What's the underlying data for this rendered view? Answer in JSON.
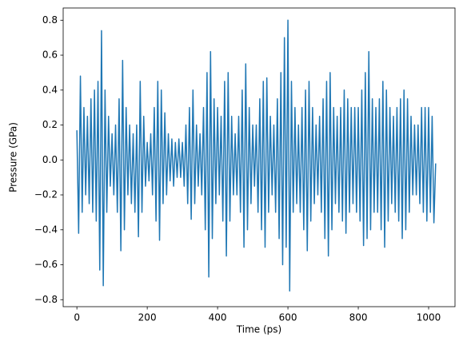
{
  "chart_data": {
    "type": "line",
    "xlabel": "Time (ps)",
    "ylabel": "Pressure (GPa)",
    "x": [
      0,
      5,
      10,
      15,
      20,
      25,
      30,
      35,
      40,
      45,
      50,
      55,
      60,
      65,
      70,
      75,
      80,
      85,
      90,
      95,
      100,
      105,
      110,
      115,
      120,
      125,
      130,
      135,
      140,
      145,
      150,
      155,
      160,
      165,
      170,
      175,
      180,
      185,
      190,
      195,
      200,
      205,
      210,
      215,
      220,
      225,
      230,
      235,
      240,
      245,
      250,
      255,
      260,
      265,
      270,
      275,
      280,
      285,
      290,
      295,
      300,
      305,
      310,
      315,
      320,
      325,
      330,
      335,
      340,
      345,
      350,
      355,
      360,
      365,
      370,
      375,
      380,
      385,
      390,
      395,
      400,
      405,
      410,
      415,
      420,
      425,
      430,
      435,
      440,
      445,
      450,
      455,
      460,
      465,
      470,
      475,
      480,
      485,
      490,
      495,
      500,
      505,
      510,
      515,
      520,
      525,
      530,
      535,
      540,
      545,
      550,
      555,
      560,
      565,
      570,
      575,
      580,
      585,
      590,
      595,
      600,
      605,
      610,
      615,
      620,
      625,
      630,
      635,
      640,
      645,
      650,
      655,
      660,
      665,
      670,
      675,
      680,
      685,
      690,
      695,
      700,
      705,
      710,
      715,
      720,
      725,
      730,
      735,
      740,
      745,
      750,
      755,
      760,
      765,
      770,
      775,
      780,
      785,
      790,
      795,
      800,
      805,
      810,
      815,
      820,
      825,
      830,
      835,
      840,
      845,
      850,
      855,
      860,
      865,
      870,
      875,
      880,
      885,
      890,
      895,
      900,
      905,
      910,
      915,
      920,
      925,
      930,
      935,
      940,
      945,
      950,
      955,
      960,
      965,
      970,
      975,
      980,
      985,
      990,
      995,
      1000,
      1005,
      1010,
      1015,
      1020
    ],
    "series": [
      {
        "color": "#1f77b4",
        "values": [
          0.17,
          -0.42,
          0.48,
          -0.3,
          0.3,
          -0.2,
          0.25,
          -0.25,
          0.35,
          -0.3,
          0.4,
          -0.35,
          0.45,
          -0.63,
          0.74,
          -0.72,
          0.4,
          -0.3,
          0.25,
          -0.15,
          0.15,
          -0.2,
          0.2,
          -0.3,
          0.35,
          -0.52,
          0.57,
          -0.4,
          0.3,
          -0.2,
          0.2,
          -0.25,
          0.15,
          -0.3,
          0.2,
          -0.44,
          0.45,
          -0.3,
          0.25,
          -0.15,
          0.1,
          -0.12,
          0.15,
          -0.2,
          0.3,
          -0.35,
          0.45,
          -0.46,
          0.4,
          -0.25,
          0.27,
          -0.2,
          0.15,
          -0.12,
          0.12,
          -0.15,
          0.1,
          -0.1,
          0.12,
          -0.1,
          0.1,
          -0.15,
          0.2,
          -0.25,
          0.3,
          -0.34,
          0.4,
          -0.25,
          0.2,
          -0.15,
          0.15,
          -0.2,
          0.3,
          -0.4,
          0.5,
          -0.67,
          0.62,
          -0.45,
          0.35,
          -0.25,
          0.3,
          -0.2,
          0.25,
          -0.35,
          0.45,
          -0.55,
          0.5,
          -0.35,
          0.25,
          -0.2,
          0.15,
          -0.2,
          0.25,
          -0.3,
          0.4,
          -0.5,
          0.55,
          -0.4,
          0.3,
          -0.25,
          0.2,
          -0.15,
          0.2,
          -0.3,
          0.35,
          -0.4,
          0.45,
          -0.5,
          0.47,
          -0.3,
          0.25,
          -0.2,
          0.2,
          -0.3,
          0.35,
          -0.45,
          0.5,
          -0.6,
          0.7,
          -0.5,
          0.8,
          -0.75,
          0.45,
          -0.3,
          0.3,
          -0.25,
          0.2,
          -0.3,
          0.3,
          -0.4,
          0.4,
          -0.52,
          0.45,
          -0.35,
          0.3,
          -0.25,
          0.2,
          -0.2,
          0.25,
          -0.3,
          0.35,
          -0.45,
          0.45,
          -0.55,
          0.5,
          -0.4,
          0.3,
          -0.25,
          0.25,
          -0.3,
          0.3,
          -0.35,
          0.4,
          -0.42,
          0.35,
          -0.3,
          0.3,
          -0.25,
          0.3,
          -0.3,
          0.3,
          -0.35,
          0.4,
          -0.49,
          0.5,
          -0.45,
          0.62,
          -0.4,
          0.35,
          -0.3,
          0.3,
          -0.3,
          0.35,
          -0.4,
          0.45,
          -0.5,
          0.4,
          -0.35,
          0.3,
          -0.25,
          0.25,
          -0.3,
          0.3,
          -0.35,
          0.35,
          -0.45,
          0.4,
          -0.4,
          0.35,
          -0.3,
          0.25,
          -0.2,
          0.2,
          -0.2,
          0.2,
          -0.25,
          0.3,
          -0.3,
          0.3,
          -0.35,
          0.3,
          -0.3,
          0.25,
          -0.36,
          -0.02
        ]
      }
    ],
    "xlim": [
      -39,
      1075
    ],
    "ylim": [
      -0.84,
      0.87
    ],
    "xticks": [
      0,
      200,
      400,
      600,
      800,
      1000
    ],
    "yticks": [
      {
        "value": -0.8,
        "label": "−0.8"
      },
      {
        "value": -0.6,
        "label": "−0.6"
      },
      {
        "value": -0.4,
        "label": "−0.4"
      },
      {
        "value": -0.2,
        "label": "−0.2"
      },
      {
        "value": 0,
        "label": "0.0"
      },
      0.2,
      0.4,
      0.6,
      0.8
    ]
  }
}
